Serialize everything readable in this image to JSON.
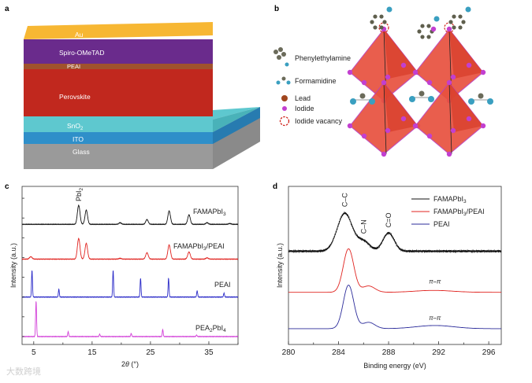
{
  "panels": {
    "a": "a",
    "b": "b",
    "c": "c",
    "d": "d"
  },
  "panel_a": {
    "layers": [
      {
        "name": "Au",
        "color": "#f7b733"
      },
      {
        "name": "Spiro-OMeTAD",
        "color": "#6a2b8c"
      },
      {
        "name": "PEAI",
        "color": "#a0522d"
      },
      {
        "name": "Perovskite",
        "color": "#c1281e"
      },
      {
        "name": "SnO",
        "sub": "2",
        "color": "#5ec8cf"
      },
      {
        "name": "ITO",
        "color": "#2f8fc9"
      },
      {
        "name": "Glass",
        "color": "#9a9a9a"
      }
    ]
  },
  "panel_b": {
    "legend": [
      {
        "label": "Phenylethylamine",
        "icon": "phenylethylamine-molecule-icon"
      },
      {
        "label": "Formamidine",
        "icon": "formamidine-molecule-icon"
      },
      {
        "label": "Lead",
        "icon": "lead-atom-icon",
        "color": "#a0461e"
      },
      {
        "label": "Iodide",
        "icon": "iodide-atom-icon",
        "color": "#c23fd0"
      },
      {
        "label": "Iodide vacancy",
        "icon": "vacancy-circle-icon",
        "color": "#d0231c"
      }
    ],
    "octahedron_color": "#e8513e"
  },
  "chart_data": [
    {
      "type": "line",
      "panel": "c",
      "xlabel_pre": "2",
      "xlabel_theta": "θ",
      "xlabel_post": " (°)",
      "ylabel": "Intensity (a.u.)",
      "xlim": [
        3,
        40
      ],
      "ylim": [
        0,
        10
      ],
      "xticks": [
        5,
        15,
        25,
        35
      ],
      "annotation": {
        "text": "PbI",
        "sub": "2",
        "x": 12.7
      },
      "series": [
        {
          "name": "FAMAPbI",
          "sub": "3",
          "post": "",
          "color": "#111111",
          "baseline": 7.6,
          "width": 0.22,
          "peaks": [
            [
              12.7,
              1.2
            ],
            [
              14.0,
              0.9
            ],
            [
              19.8,
              0.1
            ],
            [
              24.4,
              0.3
            ],
            [
              28.2,
              0.85
            ],
            [
              31.6,
              0.6
            ],
            [
              34.7,
              0.1
            ],
            [
              38.6,
              0.05
            ]
          ]
        },
        {
          "name": "FAMAPbI",
          "sub": "3",
          "post": "/PEAI",
          "color": "#e0231f",
          "baseline": 5.4,
          "width": 0.22,
          "peaks": [
            [
              4.5,
              0.15
            ],
            [
              12.7,
              1.3
            ],
            [
              14.0,
              1.0
            ],
            [
              19.8,
              0.05
            ],
            [
              24.4,
              0.4
            ],
            [
              28.2,
              0.9
            ],
            [
              31.6,
              0.45
            ],
            [
              34.7,
              0.08
            ]
          ]
        },
        {
          "name": "PEAI",
          "sub": "",
          "post": "",
          "color": "#2b2bc8",
          "baseline": 3.0,
          "width": 0.08,
          "peaks": [
            [
              4.7,
              1.7
            ],
            [
              9.3,
              0.5
            ],
            [
              18.6,
              1.7
            ],
            [
              23.3,
              1.2
            ],
            [
              28.1,
              1.2
            ],
            [
              33.0,
              0.4
            ],
            [
              37.6,
              0.25
            ]
          ]
        },
        {
          "name": "PEA",
          "sub": "2",
          "post": "PbI",
          "sub2": "4",
          "color": "#d23fd8",
          "baseline": 0.5,
          "width": 0.08,
          "peaks": [
            [
              5.4,
              2.25
            ],
            [
              10.9,
              0.3
            ],
            [
              16.3,
              0.15
            ],
            [
              21.7,
              0.2
            ],
            [
              27.1,
              0.45
            ],
            [
              32.9,
              0.1
            ]
          ]
        }
      ]
    },
    {
      "type": "line",
      "panel": "d",
      "xlabel": "Binding energy (eV)",
      "ylabel": "Intensity (a.u.)",
      "xlim": [
        280,
        297
      ],
      "ylim": [
        0,
        10
      ],
      "xticks": [
        280,
        284,
        288,
        292,
        296
      ],
      "annotations": [
        {
          "text": "C–C",
          "x": 284.5
        },
        {
          "text": "C–N",
          "x": 286.0
        },
        {
          "text": "C=O",
          "x": 288.0
        },
        {
          "text": "π–π",
          "x": 291.7,
          "series": 1
        },
        {
          "text": "π–π",
          "x": 291.7,
          "series": 2
        }
      ],
      "series": [
        {
          "name": "FAMAPbI",
          "sub": "3",
          "post": "",
          "color": "#111111",
          "baseline": 5.9,
          "noise": 0.08,
          "peaks": [
            [
              284.5,
              2.4,
              0.6
            ],
            [
              286.0,
              0.6,
              0.5
            ],
            [
              288.0,
              1.15,
              0.45
            ]
          ]
        },
        {
          "name": "FAMAPbI",
          "sub": "3",
          "post": "/PEAI",
          "color": "#e0231f",
          "baseline": 3.3,
          "noise": 0,
          "peaks": [
            [
              284.8,
              2.75,
              0.42
            ],
            [
              286.4,
              0.4,
              0.5
            ],
            [
              291.6,
              0.12,
              1.5
            ]
          ]
        },
        {
          "name": "PEAI",
          "sub": "",
          "post": "",
          "color": "#2b2b9a",
          "baseline": 1.0,
          "noise": 0,
          "peaks": [
            [
              284.8,
              2.75,
              0.42
            ],
            [
              286.4,
              0.4,
              0.5
            ],
            [
              291.7,
              0.2,
              1.5
            ]
          ]
        }
      ]
    }
  ],
  "watermark": "大数跨境"
}
